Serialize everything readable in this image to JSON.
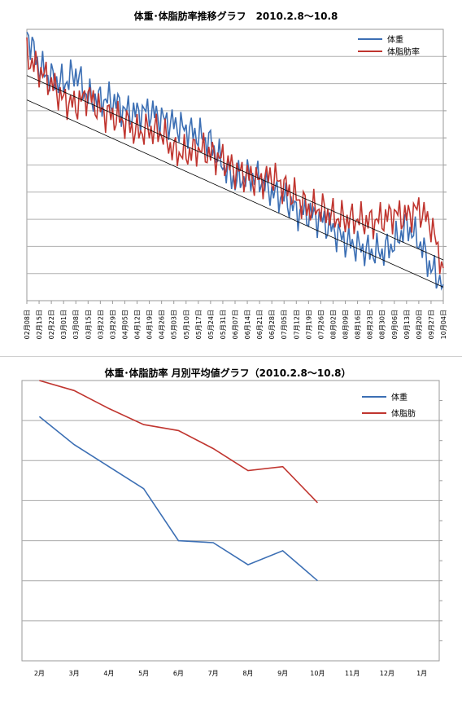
{
  "chart_data": [
    {
      "type": "line",
      "title": "体重･体脂肪率推移グラフ　2010.2.8～10.8",
      "xlabel": "",
      "ylabel": "",
      "x": [
        "02月08日",
        "02月15日",
        "02月22日",
        "03月01日",
        "03月08日",
        "03月15日",
        "03月22日",
        "03月29日",
        "04月05日",
        "04月12日",
        "04月19日",
        "04月26日",
        "05月03日",
        "05月10日",
        "05月17日",
        "05月24日",
        "05月31日",
        "06月07日",
        "06月14日",
        "06月21日",
        "06月28日",
        "07月05日",
        "07月12日",
        "07月19日",
        "07月26日",
        "08月02日",
        "08月09日",
        "08月16日",
        "08月23日",
        "08月30日",
        "09月06日",
        "09月13日",
        "09月20日",
        "09月27日",
        "10月04日"
      ],
      "grid": true,
      "legend": "top-right",
      "series": [
        {
          "name": "体重",
          "color": "#3c6fb4",
          "values": [
            0.99,
            0.86,
            0.82,
            0.8,
            0.84,
            0.75,
            0.74,
            0.74,
            0.7,
            0.69,
            0.7,
            0.67,
            0.65,
            0.63,
            0.61,
            0.58,
            0.5,
            0.44,
            0.46,
            0.45,
            0.4,
            0.38,
            0.33,
            0.32,
            0.3,
            0.26,
            0.22,
            0.2,
            0.18,
            0.18,
            0.21,
            0.28,
            0.22,
            0.12,
            0.06
          ]
        },
        {
          "name": "体脂肪率",
          "color": "#c0352f",
          "values": [
            0.9,
            0.85,
            0.8,
            0.74,
            0.72,
            0.76,
            0.7,
            0.68,
            0.66,
            0.62,
            0.63,
            0.62,
            0.55,
            0.54,
            0.56,
            0.54,
            0.52,
            0.48,
            0.46,
            0.44,
            0.46,
            0.42,
            0.38,
            0.34,
            0.34,
            0.31,
            0.3,
            0.3,
            0.29,
            0.3,
            0.32,
            0.31,
            0.34,
            0.28,
            0.12
          ]
        }
      ],
      "trendlines": [
        {
          "series": "体重",
          "color": "#000000",
          "from": 0.74,
          "to": 0.05
        },
        {
          "series": "体脂肪率",
          "color": "#000000",
          "from": 0.83,
          "to": 0.15
        }
      ]
    },
    {
      "type": "line",
      "title": "体重･体脂肪率 月別平均値グラフ（2010.2.8～10.8）",
      "xlabel": "",
      "ylabel": "",
      "categories": [
        "2月",
        "3月",
        "4月",
        "5月",
        "6月",
        "7月",
        "8月",
        "9月",
        "10月",
        "11月",
        "12月",
        "1月"
      ],
      "grid": true,
      "legend": "top-right",
      "series": [
        {
          "name": "体重",
          "color": "#3c6fb4",
          "values": [
            6.1,
            5.4,
            4.85,
            4.3,
            3.0,
            2.95,
            2.4,
            2.75,
            2.0,
            null,
            null,
            null
          ]
        },
        {
          "name": "体脂肪",
          "color": "#c0352f",
          "values": [
            7.1,
            6.75,
            6.3,
            5.9,
            5.75,
            5.3,
            4.75,
            4.85,
            3.95,
            null,
            null,
            null
          ]
        }
      ]
    }
  ]
}
